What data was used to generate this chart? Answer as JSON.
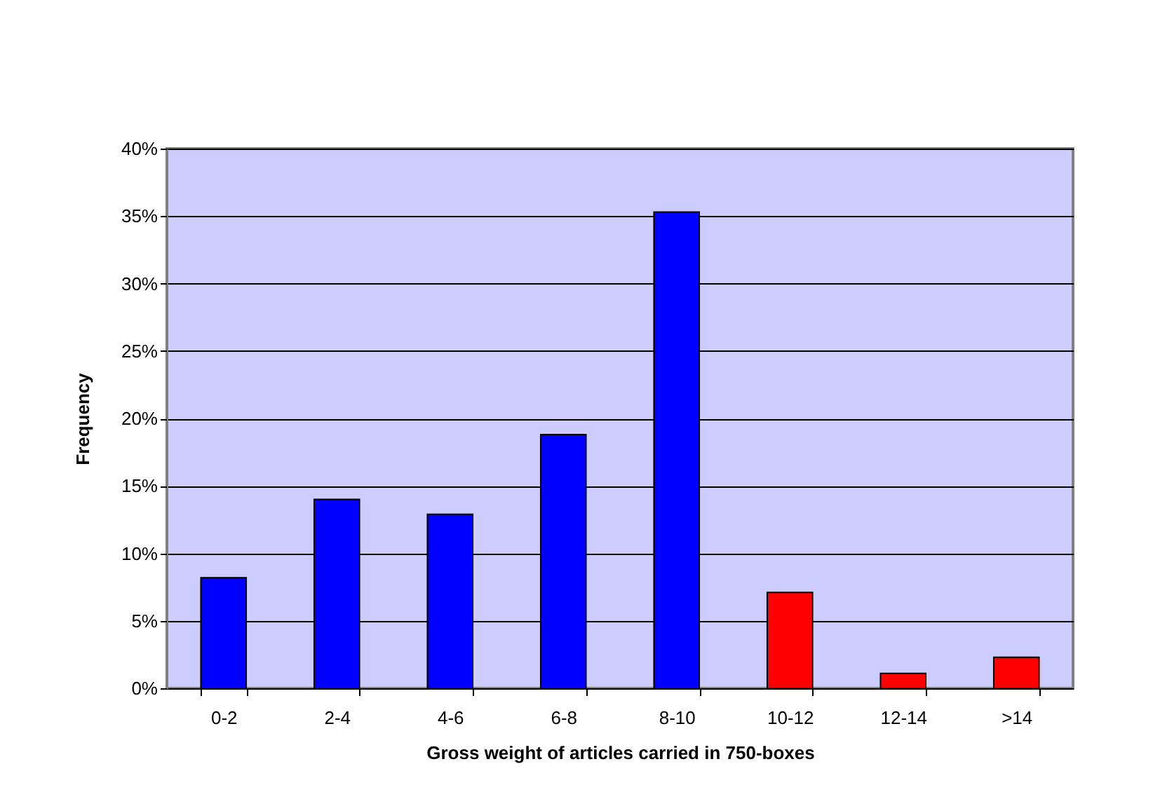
{
  "chart_data": {
    "type": "bar",
    "xlabel": "Gross weight of articles carried in 750-boxes",
    "ylabel": "Frequency",
    "categories": [
      "0-2",
      "2-4",
      "4-6",
      "6-8",
      "8-10",
      "10-12",
      "12-14",
      ">14"
    ],
    "values": [
      8.2,
      14.0,
      12.9,
      18.8,
      35.3,
      7.1,
      1.1,
      2.3
    ],
    "colors": [
      "#0000ff",
      "#0000ff",
      "#0000ff",
      "#0000ff",
      "#0000ff",
      "#ff0000",
      "#ff0000",
      "#ff0000"
    ],
    "ylim": [
      0,
      40
    ],
    "yticks": [
      {
        "value": 0,
        "label": "0%"
      },
      {
        "value": 5,
        "label": "5%"
      },
      {
        "value": 10,
        "label": "10%"
      },
      {
        "value": 15,
        "label": "15%"
      },
      {
        "value": 20,
        "label": "20%"
      },
      {
        "value": 25,
        "label": "25%"
      },
      {
        "value": 30,
        "label": "30%"
      },
      {
        "value": 35,
        "label": "35%"
      },
      {
        "value": 40,
        "label": "40%"
      }
    ],
    "grid": "y"
  }
}
